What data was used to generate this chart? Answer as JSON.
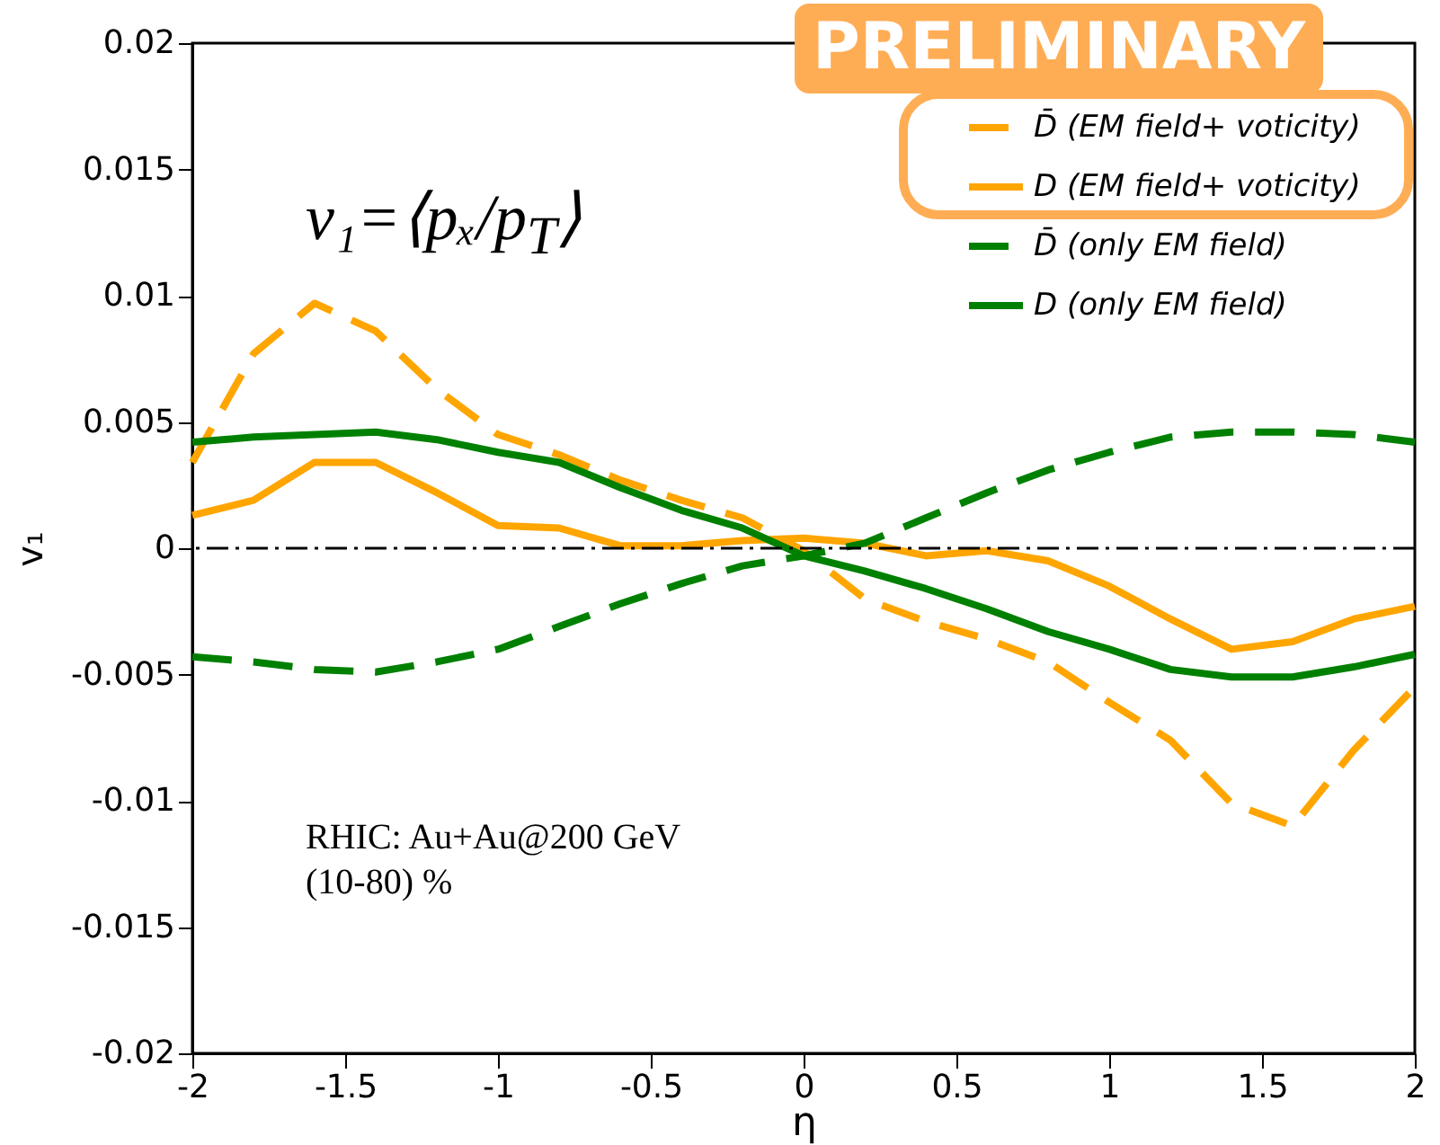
{
  "chart_data": {
    "type": "line",
    "xlabel": "η",
    "ylabel": "v₁",
    "x": [
      -2,
      -1.8,
      -1.6,
      -1.4,
      -1.2,
      -1,
      -0.8,
      -0.6,
      -0.4,
      -0.2,
      0,
      0.2,
      0.4,
      0.6,
      0.8,
      1,
      1.2,
      1.4,
      1.6,
      1.8,
      2
    ],
    "series": [
      {
        "name": "D̄ (EM field+ voticity)",
        "color": "#ffa500",
        "line_style": "dashed",
        "values": [
          0.0034,
          0.0077,
          0.0097,
          0.0086,
          0.0063,
          0.0045,
          0.0037,
          0.0027,
          0.0019,
          0.0012,
          -0.0001,
          -0.002,
          -0.0029,
          -0.0036,
          -0.0045,
          -0.0061,
          -0.0076,
          -0.0101,
          -0.011,
          -0.008,
          -0.0055
        ]
      },
      {
        "name": "D (EM field+ voticity)",
        "color": "#ffa500",
        "line_style": "solid",
        "values": [
          0.0013,
          0.0019,
          0.0034,
          0.0034,
          0.0022,
          0.0009,
          0.0008,
          0.0001,
          0.0001,
          0.0003,
          0.0004,
          0.0002,
          -0.0003,
          -0.0001,
          -0.0005,
          -0.0015,
          -0.0028,
          -0.004,
          -0.0037,
          -0.0028,
          -0.0023
        ]
      },
      {
        "name": "D̄ (only EM field)",
        "color": "#008000",
        "line_style": "dashed",
        "values": [
          -0.0043,
          -0.0045,
          -0.0048,
          -0.0049,
          -0.0045,
          -0.004,
          -0.0031,
          -0.0022,
          -0.0014,
          -0.0007,
          -0.0003,
          0.0002,
          0.0012,
          0.0022,
          0.0031,
          0.0038,
          0.0044,
          0.0046,
          0.0046,
          0.0045,
          0.0042
        ]
      },
      {
        "name": "D (only EM field)",
        "color": "#008000",
        "line_style": "solid",
        "values": [
          0.0042,
          0.0044,
          0.0045,
          0.0046,
          0.0043,
          0.0038,
          0.0034,
          0.0024,
          0.0015,
          0.0008,
          -0.0003,
          -0.0009,
          -0.0016,
          -0.0024,
          -0.0033,
          -0.004,
          -0.0048,
          -0.0051,
          -0.0051,
          -0.0047,
          -0.0042
        ]
      }
    ],
    "xlim": [
      -2,
      2
    ],
    "xticks": [
      -2,
      -1.5,
      -1,
      -0.5,
      0,
      0.5,
      1,
      1.5,
      2
    ],
    "ylim": [
      -0.02,
      0.02
    ],
    "yticks": [
      -0.02,
      -0.015,
      -0.01,
      -0.005,
      0,
      0.005,
      0.01,
      0.015,
      0.02
    ],
    "ref_lines": [
      {
        "axis": "y",
        "value": 0,
        "color": "#000000",
        "line_style": "dashed"
      }
    ],
    "annotations": [
      "PRELIMINARY",
      "v₁=⟨pₓ/p$_{T}$⟩",
      "RHIC: Au+Au@200 GeV",
      "(10-80) %"
    ],
    "grid": false,
    "legend": "top right",
    "marker": "none"
  }
}
